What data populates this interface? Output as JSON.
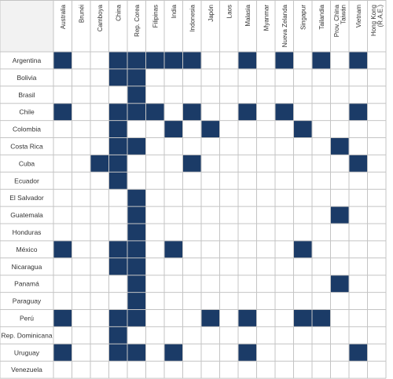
{
  "chart_data": {
    "type": "heatmap",
    "columns": [
      "Australia",
      "Brunéi",
      "Camboya",
      "China",
      "Rep. Corea",
      "Filipinas",
      "India",
      "Indonesia",
      "Japón",
      "Laos",
      "Malasia",
      "Myanmar",
      "Nueva Zelanda",
      "Singapur",
      "Tailandia",
      [
        "Prov. China",
        "Taiwán"
      ],
      "Vietnam",
      [
        "Hong Kong",
        "(R.A.E.)"
      ]
    ],
    "rows": [
      "Argentina",
      "Bolivia",
      "Brasil",
      "Chile",
      "Colombia",
      "Costa Rica",
      "Cuba",
      "Ecuador",
      "El Salvador",
      "Guatemala",
      "Honduras",
      "México",
      "Nicaragua",
      "Panamá",
      "Paraguay",
      "Perú",
      "Rep. Dominicana",
      "Uruguay",
      "Venezuela"
    ],
    "matrix": [
      [
        1,
        0,
        0,
        1,
        1,
        1,
        1,
        1,
        0,
        0,
        1,
        0,
        1,
        0,
        1,
        0,
        1,
        0
      ],
      [
        0,
        0,
        0,
        1,
        1,
        0,
        0,
        0,
        0,
        0,
        0,
        0,
        0,
        0,
        0,
        0,
        0,
        0
      ],
      [
        0,
        0,
        0,
        0,
        1,
        0,
        0,
        0,
        0,
        0,
        0,
        0,
        0,
        0,
        0,
        0,
        0,
        0
      ],
      [
        1,
        0,
        0,
        1,
        1,
        1,
        0,
        1,
        0,
        0,
        1,
        0,
        1,
        0,
        0,
        0,
        1,
        0
      ],
      [
        0,
        0,
        0,
        1,
        0,
        0,
        1,
        0,
        1,
        0,
        0,
        0,
        0,
        1,
        0,
        0,
        0,
        0
      ],
      [
        0,
        0,
        0,
        1,
        1,
        0,
        0,
        0,
        0,
        0,
        0,
        0,
        0,
        0,
        0,
        1,
        0,
        0
      ],
      [
        0,
        0,
        1,
        1,
        0,
        0,
        0,
        1,
        0,
        0,
        0,
        0,
        0,
        0,
        0,
        0,
        1,
        0
      ],
      [
        0,
        0,
        0,
        1,
        0,
        0,
        0,
        0,
        0,
        0,
        0,
        0,
        0,
        0,
        0,
        0,
        0,
        0
      ],
      [
        0,
        0,
        0,
        0,
        1,
        0,
        0,
        0,
        0,
        0,
        0,
        0,
        0,
        0,
        0,
        0,
        0,
        0
      ],
      [
        0,
        0,
        0,
        0,
        1,
        0,
        0,
        0,
        0,
        0,
        0,
        0,
        0,
        0,
        0,
        1,
        0,
        0
      ],
      [
        0,
        0,
        0,
        0,
        1,
        0,
        0,
        0,
        0,
        0,
        0,
        0,
        0,
        0,
        0,
        0,
        0,
        0
      ],
      [
        1,
        0,
        0,
        1,
        1,
        0,
        1,
        0,
        0,
        0,
        0,
        0,
        0,
        1,
        0,
        0,
        0,
        0
      ],
      [
        0,
        0,
        0,
        1,
        1,
        0,
        0,
        0,
        0,
        0,
        0,
        0,
        0,
        0,
        0,
        0,
        0,
        0
      ],
      [
        0,
        0,
        0,
        0,
        1,
        0,
        0,
        0,
        0,
        0,
        0,
        0,
        0,
        0,
        0,
        1,
        0,
        0
      ],
      [
        0,
        0,
        0,
        0,
        1,
        0,
        0,
        0,
        0,
        0,
        0,
        0,
        0,
        0,
        0,
        0,
        0,
        0
      ],
      [
        1,
        0,
        0,
        1,
        1,
        0,
        0,
        0,
        1,
        0,
        1,
        0,
        0,
        1,
        1,
        0,
        0,
        0
      ],
      [
        0,
        0,
        0,
        1,
        0,
        0,
        0,
        0,
        0,
        0,
        0,
        0,
        0,
        0,
        0,
        0,
        0,
        0
      ],
      [
        1,
        0,
        0,
        1,
        1,
        0,
        1,
        0,
        0,
        0,
        1,
        0,
        0,
        0,
        0,
        0,
        1,
        0
      ],
      [
        0,
        0,
        0,
        0,
        0,
        0,
        0,
        0,
        0,
        0,
        0,
        0,
        0,
        0,
        0,
        0,
        0,
        0
      ]
    ],
    "colors": {
      "filled": "#1b3b67",
      "empty": "#ffffff",
      "grid": "#c4c4c4",
      "header_bg": "#f2f2f2",
      "label_text": "#333333"
    }
  }
}
